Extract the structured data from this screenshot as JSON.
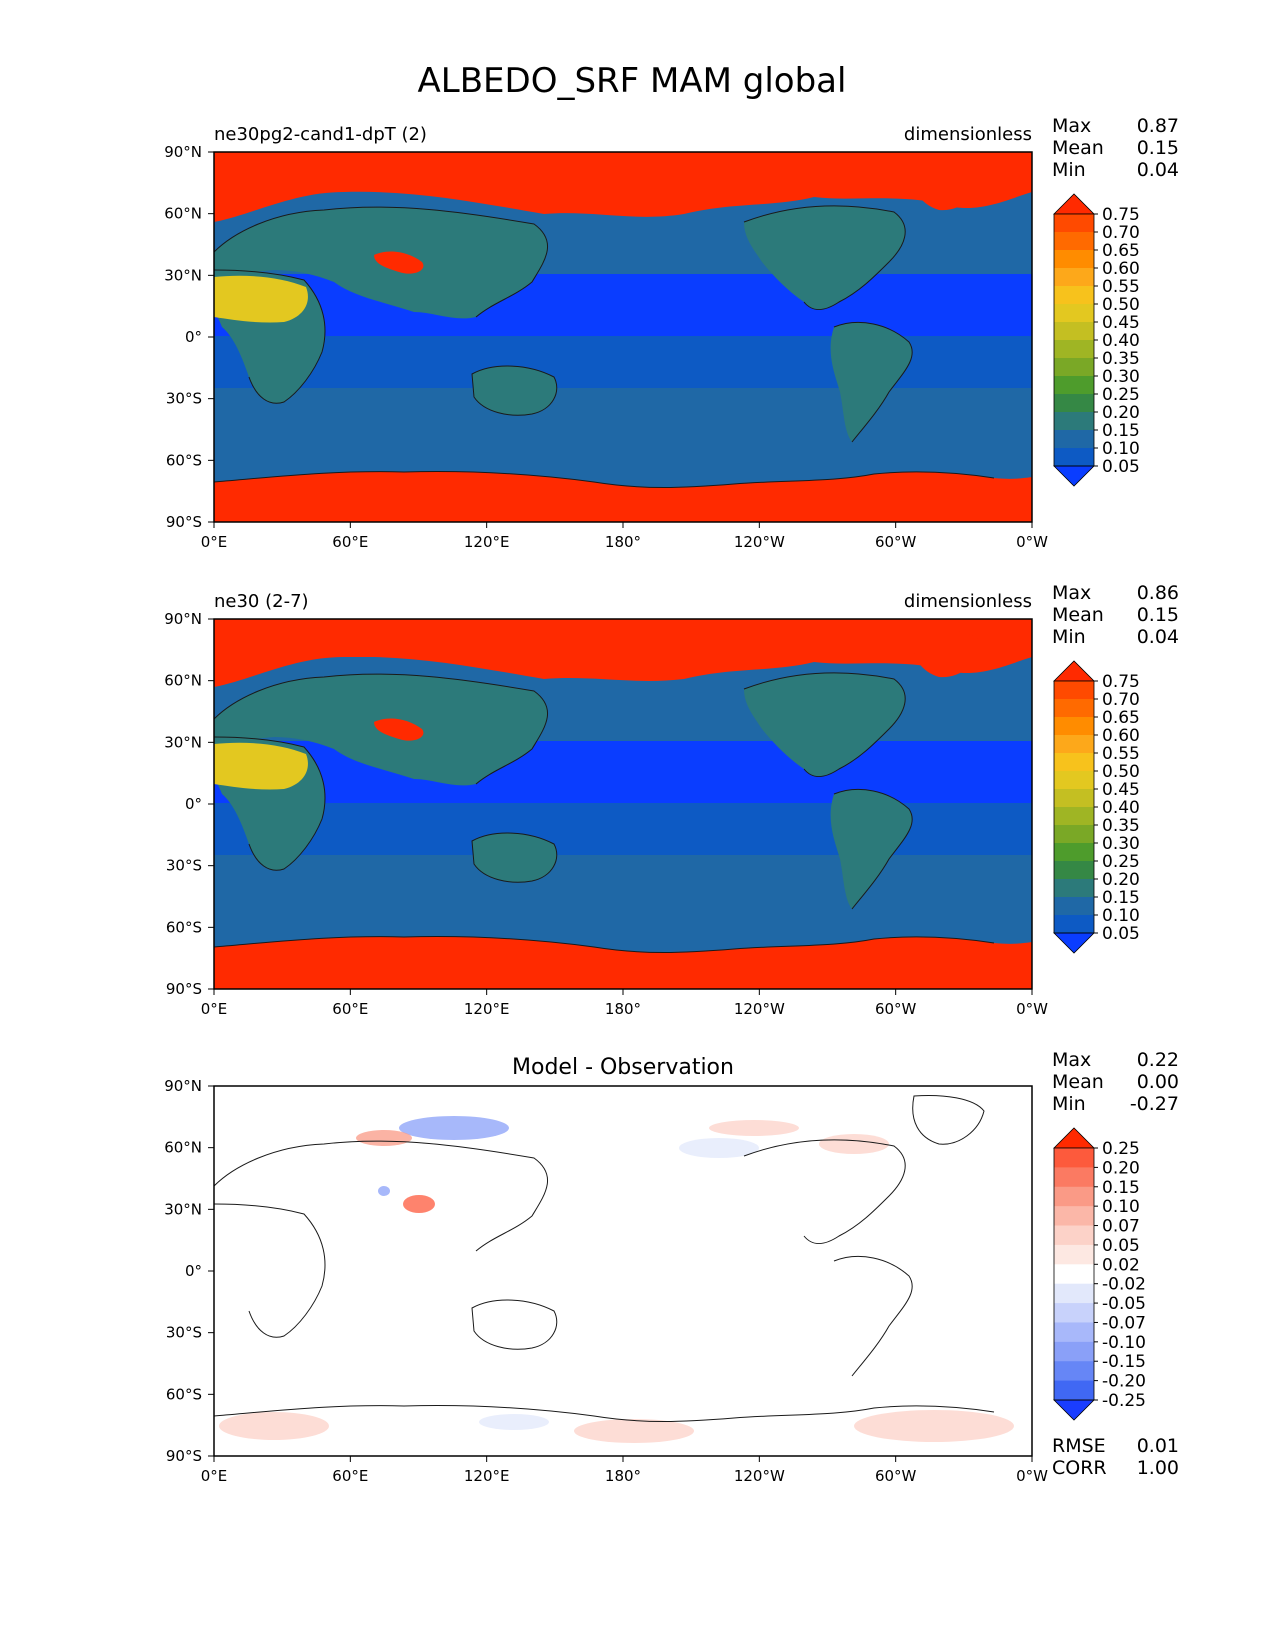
{
  "figure": {
    "title": "ALBEDO_SRF MAM global"
  },
  "chart_data": [
    {
      "type": "heatmap",
      "left_title": "ne30pg2-cand1-dpT (2)",
      "right_title": "dimensionless",
      "center_title": "",
      "stats": [
        {
          "label": "Max",
          "value": "0.87"
        },
        {
          "label": "Mean",
          "value": "0.15"
        },
        {
          "label": "Min",
          "value": "0.04"
        }
      ],
      "colorbar": {
        "levels": [
          "0.75",
          "0.70",
          "0.65",
          "0.60",
          "0.55",
          "0.50",
          "0.45",
          "0.40",
          "0.35",
          "0.30",
          "0.25",
          "0.20",
          "0.15",
          "0.10",
          "0.05"
        ],
        "colors": [
          "#ff2a00",
          "#ff4a00",
          "#ff6a00",
          "#ff8c00",
          "#fda81a",
          "#f7c21c",
          "#e3c820",
          "#c4bf22",
          "#9fb524",
          "#7aa826",
          "#4e9c2c",
          "#358845",
          "#2c7a7a",
          "#1f68a6",
          "#0d5ac4",
          "#0a3dff"
        ]
      },
      "extra_stats": [],
      "x_ticks": [
        "0°E",
        "60°E",
        "120°E",
        "180°",
        "120°W",
        "60°W",
        "0°W"
      ],
      "y_ticks": [
        "90°N",
        "60°N",
        "30°N",
        "0°",
        "30°S",
        "60°S",
        "90°S"
      ],
      "xlim": [
        0,
        360
      ],
      "ylim": [
        -90,
        90
      ]
    },
    {
      "type": "heatmap",
      "left_title": "ne30 (2-7)",
      "right_title": "dimensionless",
      "center_title": "",
      "stats": [
        {
          "label": "Max",
          "value": "0.86"
        },
        {
          "label": "Mean",
          "value": "0.15"
        },
        {
          "label": "Min",
          "value": "0.04"
        }
      ],
      "colorbar": {
        "levels": [
          "0.75",
          "0.70",
          "0.65",
          "0.60",
          "0.55",
          "0.50",
          "0.45",
          "0.40",
          "0.35",
          "0.30",
          "0.25",
          "0.20",
          "0.15",
          "0.10",
          "0.05"
        ],
        "colors": [
          "#ff2a00",
          "#ff4a00",
          "#ff6a00",
          "#ff8c00",
          "#fda81a",
          "#f7c21c",
          "#e3c820",
          "#c4bf22",
          "#9fb524",
          "#7aa826",
          "#4e9c2c",
          "#358845",
          "#2c7a7a",
          "#1f68a6",
          "#0d5ac4",
          "#0a3dff"
        ]
      },
      "extra_stats": [],
      "x_ticks": [
        "0°E",
        "60°E",
        "120°E",
        "180°",
        "120°W",
        "60°W",
        "0°W"
      ],
      "y_ticks": [
        "90°N",
        "60°N",
        "30°N",
        "0°",
        "30°S",
        "60°S",
        "90°S"
      ],
      "xlim": [
        0,
        360
      ],
      "ylim": [
        -90,
        90
      ]
    },
    {
      "type": "heatmap",
      "left_title": "",
      "right_title": "",
      "center_title": "Model - Observation",
      "stats": [
        {
          "label": "Max",
          "value": "0.22"
        },
        {
          "label": "Mean",
          "value": "0.00"
        },
        {
          "label": "Min",
          "value": "-0.27"
        }
      ],
      "colorbar": {
        "levels": [
          "0.25",
          "0.20",
          "0.15",
          "0.10",
          "0.07",
          "0.05",
          "0.02",
          "-0.02",
          "-0.05",
          "-0.07",
          "-0.10",
          "-0.15",
          "-0.20",
          "-0.25"
        ],
        "colors": [
          "#ff2a00",
          "#fd5a3c",
          "#fb7a62",
          "#fa9a86",
          "#fbb7a8",
          "#fcd2c8",
          "#fde8e2",
          "#ffffff",
          "#e2e8fb",
          "#c8d2fb",
          "#a8b8fa",
          "#8aa0f8",
          "#6686f6",
          "#4068f4",
          "#1a3dff"
        ]
      },
      "extra_stats": [
        {
          "label": "RMSE",
          "value": "0.01"
        },
        {
          "label": "CORR",
          "value": "1.00"
        }
      ],
      "x_ticks": [
        "0°E",
        "60°E",
        "120°E",
        "180°",
        "120°W",
        "60°W",
        "0°W"
      ],
      "y_ticks": [
        "90°N",
        "60°N",
        "30°N",
        "0°",
        "30°S",
        "60°S",
        "90°S"
      ],
      "xlim": [
        0,
        360
      ],
      "ylim": [
        -90,
        90
      ]
    }
  ]
}
